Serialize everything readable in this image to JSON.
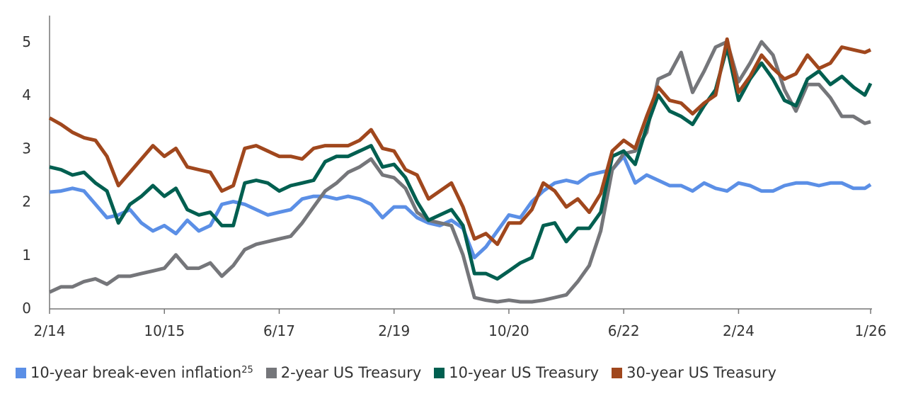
{
  "chart_data": {
    "type": "line",
    "title": "",
    "xlabel": "",
    "ylabel": "",
    "ylim": [
      0,
      5.3
    ],
    "yticks": [
      "0",
      "1",
      "2",
      "3",
      "4",
      "5"
    ],
    "xticks": [
      "2/14",
      "10/15",
      "6/17",
      "2/19",
      "10/20",
      "6/22",
      "2/24",
      "1/26"
    ],
    "grid": false,
    "legend_position": "bottom",
    "x": [
      "2/14",
      "4/14",
      "6/14",
      "8/14",
      "10/14",
      "12/14",
      "2/15",
      "4/15",
      "6/15",
      "8/15",
      "10/15",
      "12/15",
      "2/16",
      "4/16",
      "6/16",
      "8/16",
      "10/16",
      "12/16",
      "2/17",
      "4/17",
      "6/17",
      "8/17",
      "10/17",
      "12/17",
      "2/18",
      "4/18",
      "6/18",
      "8/18",
      "10/18",
      "12/18",
      "2/19",
      "4/19",
      "6/19",
      "8/19",
      "10/19",
      "12/19",
      "2/20",
      "4/20",
      "6/20",
      "8/20",
      "10/20",
      "12/20",
      "2/21",
      "4/21",
      "6/21",
      "8/21",
      "10/21",
      "12/21",
      "2/22",
      "4/22",
      "6/22",
      "8/22",
      "10/22",
      "12/22",
      "2/23",
      "4/23",
      "6/23",
      "8/23",
      "10/23",
      "12/23",
      "2/24",
      "4/24",
      "6/24",
      "8/24",
      "10/24",
      "12/24",
      "2/25",
      "4/25",
      "6/25",
      "8/25",
      "10/25",
      "12/25",
      "1/26"
    ],
    "series": [
      {
        "name": "10-year break-even inflation",
        "superscript": "25",
        "color": "#5b8fe6",
        "values": [
          2.18,
          2.2,
          2.25,
          2.2,
          1.95,
          1.7,
          1.75,
          1.85,
          1.6,
          1.45,
          1.55,
          1.4,
          1.65,
          1.45,
          1.55,
          1.95,
          2.0,
          1.95,
          1.85,
          1.75,
          1.8,
          1.85,
          2.05,
          2.1,
          2.1,
          2.05,
          2.1,
          2.05,
          1.95,
          1.7,
          1.9,
          1.9,
          1.7,
          1.6,
          1.55,
          1.65,
          1.5,
          0.95,
          1.15,
          1.45,
          1.75,
          1.7,
          2.0,
          2.2,
          2.35,
          2.4,
          2.35,
          2.5,
          2.55,
          2.6,
          2.85,
          2.35,
          2.5,
          2.4,
          2.3,
          2.3,
          2.2,
          2.35,
          2.25,
          2.2,
          2.35,
          2.3,
          2.2,
          2.2,
          2.3,
          2.35,
          2.35,
          2.3,
          2.35,
          2.35,
          2.25,
          2.25,
          2.32
        ]
      },
      {
        "name": "2-year US Treasury",
        "color": "#75767a",
        "values": [
          0.3,
          0.4,
          0.4,
          0.5,
          0.55,
          0.45,
          0.6,
          0.6,
          0.65,
          0.7,
          0.75,
          1.0,
          0.75,
          0.75,
          0.85,
          0.6,
          0.8,
          1.1,
          1.2,
          1.25,
          1.3,
          1.35,
          1.6,
          1.9,
          2.2,
          2.35,
          2.55,
          2.65,
          2.8,
          2.5,
          2.45,
          2.25,
          1.8,
          1.65,
          1.6,
          1.55,
          1.0,
          0.2,
          0.15,
          0.12,
          0.15,
          0.12,
          0.12,
          0.15,
          0.2,
          0.25,
          0.5,
          0.8,
          1.45,
          2.6,
          2.9,
          2.95,
          3.3,
          4.3,
          4.4,
          4.8,
          4.05,
          4.45,
          4.9,
          5.0,
          4.25,
          4.6,
          5.0,
          4.75,
          4.1,
          3.7,
          4.2,
          4.2,
          3.95,
          3.6,
          3.6,
          3.47,
          3.5
        ]
      },
      {
        "name": "10-year US Treasury",
        "color": "#005f50",
        "values": [
          2.65,
          2.6,
          2.5,
          2.55,
          2.35,
          2.2,
          1.6,
          1.95,
          2.1,
          2.3,
          2.1,
          2.25,
          1.85,
          1.75,
          1.8,
          1.55,
          1.55,
          2.35,
          2.4,
          2.35,
          2.2,
          2.3,
          2.35,
          2.4,
          2.75,
          2.85,
          2.85,
          2.95,
          3.05,
          2.65,
          2.7,
          2.45,
          2.0,
          1.65,
          1.75,
          1.85,
          1.55,
          0.65,
          0.65,
          0.55,
          0.7,
          0.85,
          0.95,
          1.55,
          1.6,
          1.25,
          1.5,
          1.5,
          1.8,
          2.85,
          2.95,
          2.7,
          3.4,
          4.0,
          3.7,
          3.6,
          3.45,
          3.8,
          4.1,
          4.9,
          3.9,
          4.3,
          4.6,
          4.3,
          3.9,
          3.8,
          4.3,
          4.45,
          4.2,
          4.35,
          4.15,
          4.0,
          4.22
        ]
      },
      {
        "name": "30-year US Treasury",
        "color": "#a0471d",
        "values": [
          3.57,
          3.45,
          3.3,
          3.2,
          3.15,
          2.85,
          2.3,
          2.55,
          2.8,
          3.05,
          2.85,
          3.0,
          2.65,
          2.6,
          2.55,
          2.2,
          2.3,
          3.0,
          3.05,
          2.95,
          2.85,
          2.85,
          2.8,
          3.0,
          3.05,
          3.05,
          3.05,
          3.15,
          3.35,
          3.0,
          2.95,
          2.6,
          2.5,
          2.05,
          2.2,
          2.35,
          1.9,
          1.3,
          1.4,
          1.2,
          1.6,
          1.6,
          1.85,
          2.35,
          2.2,
          1.9,
          2.05,
          1.8,
          2.15,
          2.95,
          3.15,
          3.0,
          3.6,
          4.15,
          3.9,
          3.85,
          3.65,
          3.85,
          4.0,
          5.05,
          4.05,
          4.35,
          4.75,
          4.5,
          4.3,
          4.4,
          4.75,
          4.5,
          4.6,
          4.9,
          4.85,
          4.8,
          4.85
        ]
      }
    ]
  }
}
